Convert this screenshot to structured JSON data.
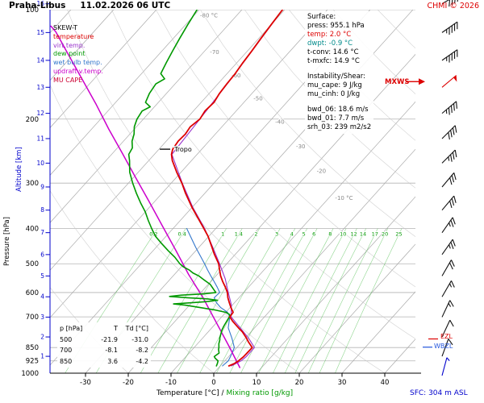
{
  "header": {
    "station": "Praha-Libus",
    "datetime": "11.02.2026 06 UTC",
    "copyright": "CHMI © 2026",
    "copyright_color": "#dd0000"
  },
  "legend": {
    "title": "SKEW-T",
    "title_color": "#000000",
    "items": [
      {
        "label": "temperature",
        "color": "#dd0000"
      },
      {
        "label": "virt.temp.",
        "color": "#9933cc"
      },
      {
        "label": "dew point",
        "color": "#009900"
      },
      {
        "label": "wet bulb temp.",
        "color": "#3377cc"
      },
      {
        "label": "updraft v.temp.",
        "color": "#cc00cc"
      },
      {
        "label": "MU CAPE",
        "color": "#cc0033"
      }
    ]
  },
  "info": {
    "surface_title": "Surface:",
    "surface": [
      {
        "text": "press: 955.1 hPa",
        "color": "#000000"
      },
      {
        "text": "temp: 2.0 °C",
        "color": "#dd0000"
      },
      {
        "text": "dwpt: -0.9 °C",
        "color": "#008b8b"
      },
      {
        "text": "t-conv: 14.6 °C",
        "color": "#000000"
      },
      {
        "text": "t-mxfc: 14.9 °C",
        "color": "#000000"
      }
    ],
    "shear_title": "Instability/Shear:",
    "shear_a": [
      {
        "text": "mu_cape: 9 J/kg"
      },
      {
        "text": "mu_cinh: 0 J/kg"
      }
    ],
    "shear_b": [
      {
        "text": "bwd_06: 18.6 m/s"
      },
      {
        "text": "bwd_01: 7.7 m/s"
      },
      {
        "text": "srh_03: 239 m2/s2"
      }
    ]
  },
  "table": {
    "headers": [
      "p [hPa]",
      "T",
      "Td [°C]"
    ],
    "rows": [
      [
        "500",
        "-21.9",
        "-31.0"
      ],
      [
        "700",
        "-8.1",
        "-8.2"
      ],
      [
        "850",
        "3.6",
        "-4.2"
      ]
    ]
  },
  "footer": {
    "x_label": "Temperature [°C]",
    "x_label_sep": " / ",
    "mixing_label": "Mixing ratio [g/kg]",
    "mixing_label_color": "#009900",
    "sfc_label": "SFC: 304 m ASL",
    "sfc_color": "#0000cc"
  },
  "chart_data": {
    "type": "line",
    "subtype": "skewt-sounding",
    "pressure_axis": {
      "label": "Pressure [hPa]",
      "scale": "log",
      "range": [
        100,
        1000
      ],
      "ticks": [
        100,
        200,
        300,
        400,
        500,
        600,
        700,
        850,
        925,
        1000
      ]
    },
    "altitude_axis": {
      "label": "Altitude [km]",
      "color": "#0000cc",
      "ticks": [
        1,
        2,
        3,
        4,
        5,
        6,
        7,
        8,
        9,
        10,
        11,
        12,
        13,
        14,
        15,
        16
      ]
    },
    "temperature_axis": {
      "label": "Temperature [°C]",
      "skew_deg": 45,
      "ticks": [
        -30,
        -20,
        -10,
        0,
        10,
        20,
        30,
        40
      ]
    },
    "isotherm_labels": [
      {
        "t": -80,
        "p": 104,
        "text": "-80 °C"
      },
      {
        "t": -70,
        "p": 131,
        "text": "-70"
      },
      {
        "t": -60,
        "p": 152,
        "text": "-60"
      },
      {
        "t": -50,
        "p": 176,
        "text": "-50"
      },
      {
        "t": -40,
        "p": 204,
        "text": "-40"
      },
      {
        "t": -30,
        "p": 238,
        "text": "-30"
      },
      {
        "t": -20,
        "p": 278,
        "text": "-20"
      },
      {
        "t": -10,
        "p": 330,
        "text": "-10 °C"
      }
    ],
    "mixing_ratio": {
      "label": "Mixing ratio [g/kg]",
      "color": "#009900",
      "values": [
        0.2,
        0.4,
        1,
        1.4,
        2,
        3,
        4,
        5,
        6,
        8,
        10,
        12,
        14,
        17,
        20,
        25
      ]
    },
    "series": [
      {
        "name": "wet_bulb",
        "color": "#3377cc",
        "width": 1.1,
        "points": [
          [
            955,
            0.5
          ],
          [
            925,
            0.8
          ],
          [
            900,
            0.4
          ],
          [
            850,
            -0.6
          ],
          [
            800,
            -3.2
          ],
          [
            750,
            -6.2
          ],
          [
            700,
            -8.1
          ],
          [
            680,
            -9.6
          ],
          [
            660,
            -12.2
          ],
          [
            640,
            -14.2
          ],
          [
            620,
            -15.8
          ],
          [
            600,
            -15.6
          ],
          [
            580,
            -17.3
          ],
          [
            560,
            -19.2
          ],
          [
            540,
            -21.2
          ],
          [
            520,
            -23.2
          ],
          [
            500,
            -25.2
          ],
          [
            450,
            -30.8
          ],
          [
            400,
            -36.8
          ]
        ]
      },
      {
        "name": "virt_temp",
        "color": "#9933cc",
        "width": 1.1,
        "points": [
          [
            955,
            2.6
          ],
          [
            925,
            3.8
          ],
          [
            900,
            4.1
          ],
          [
            850,
            4.1
          ],
          [
            800,
            0.7
          ],
          [
            750,
            -3.4
          ],
          [
            700,
            -7.8
          ],
          [
            650,
            -10.2
          ],
          [
            600,
            -13.6
          ],
          [
            550,
            -17.2
          ],
          [
            500,
            -21.7
          ],
          [
            450,
            -26.8
          ],
          [
            400,
            -32.6
          ],
          [
            350,
            -39.8
          ],
          [
            300,
            -47.4
          ],
          [
            250,
            -55.9
          ],
          [
            200,
            -56.8
          ],
          [
            150,
            -58.1
          ],
          [
            100,
            -60.5
          ]
        ]
      },
      {
        "name": "updraft_virt_temp",
        "color": "#cc00cc",
        "width": 1.5,
        "points": [
          [
            965,
            4.9
          ],
          [
            845,
            -2.0
          ],
          [
            724,
            -10.2
          ],
          [
            620,
            -18.4
          ],
          [
            535,
            -26.7
          ],
          [
            458,
            -34.9
          ],
          [
            393,
            -43.1
          ],
          [
            337,
            -51.3
          ],
          [
            289,
            -59.6
          ],
          [
            248,
            -67.8
          ],
          [
            213,
            -76.0
          ],
          [
            182,
            -84.2
          ],
          [
            156,
            -92.5
          ],
          [
            134,
            -100.7
          ],
          [
            115,
            -108.9
          ],
          [
            111,
            -111.2
          ]
        ]
      },
      {
        "name": "dew_point",
        "color": "#009900",
        "width": 1.6,
        "points": [
          [
            955,
            -0.9
          ],
          [
            940,
            -1.2
          ],
          [
            925,
            -1.6
          ],
          [
            910,
            -2.8
          ],
          [
            900,
            -3.4
          ],
          [
            880,
            -3.0
          ],
          [
            860,
            -3.9
          ],
          [
            850,
            -4.2
          ],
          [
            830,
            -5.0
          ],
          [
            810,
            -5.6
          ],
          [
            800,
            -6.0
          ],
          [
            780,
            -6.6
          ],
          [
            760,
            -7.2
          ],
          [
            740,
            -7.6
          ],
          [
            720,
            -7.9
          ],
          [
            700,
            -8.2
          ],
          [
            690,
            -8.6
          ],
          [
            680,
            -10.0
          ],
          [
            670,
            -13.0
          ],
          [
            660,
            -17.0
          ],
          [
            650,
            -21.0
          ],
          [
            645,
            -24.0
          ],
          [
            640,
            -20.0
          ],
          [
            635,
            -16.5
          ],
          [
            630,
            -14.5
          ],
          [
            625,
            -17.0
          ],
          [
            620,
            -22.0
          ],
          [
            615,
            -26.5
          ],
          [
            610,
            -24.0
          ],
          [
            605,
            -19.0
          ],
          [
            600,
            -16.5
          ],
          [
            590,
            -17.5
          ],
          [
            580,
            -18.5
          ],
          [
            570,
            -19.5
          ],
          [
            560,
            -21.0
          ],
          [
            550,
            -22.5
          ],
          [
            540,
            -24.0
          ],
          [
            530,
            -26.0
          ],
          [
            520,
            -27.5
          ],
          [
            510,
            -29.5
          ],
          [
            500,
            -31.0
          ],
          [
            480,
            -33.5
          ],
          [
            460,
            -36.5
          ],
          [
            440,
            -39.5
          ],
          [
            420,
            -42.5
          ],
          [
            400,
            -45.0
          ],
          [
            380,
            -47.5
          ],
          [
            360,
            -50.0
          ],
          [
            340,
            -53.0
          ],
          [
            320,
            -56.0
          ],
          [
            300,
            -59.0
          ],
          [
            280,
            -62.0
          ],
          [
            260,
            -64.5
          ],
          [
            250,
            -66.0
          ],
          [
            240,
            -66.5
          ],
          [
            230,
            -68.0
          ],
          [
            220,
            -69.0
          ],
          [
            210,
            -70.5
          ],
          [
            200,
            -71.5
          ],
          [
            190,
            -72.0
          ],
          [
            185,
            -71.0
          ],
          [
            180,
            -73.0
          ],
          [
            170,
            -74.0
          ],
          [
            160,
            -74.5
          ],
          [
            155,
            -73.5
          ],
          [
            150,
            -75.5
          ],
          [
            140,
            -76.5
          ],
          [
            130,
            -77.5
          ],
          [
            120,
            -78.5
          ],
          [
            110,
            -79.5
          ],
          [
            100,
            -80.5
          ]
        ]
      },
      {
        "name": "temperature",
        "color": "#dd0000",
        "width": 1.8,
        "points": [
          [
            955,
            2.0
          ],
          [
            940,
            2.8
          ],
          [
            925,
            3.2
          ],
          [
            900,
            3.5
          ],
          [
            850,
            3.6
          ],
          [
            820,
            1.5
          ],
          [
            800,
            0.2
          ],
          [
            770,
            -2.0
          ],
          [
            750,
            -3.8
          ],
          [
            720,
            -6.5
          ],
          [
            700,
            -8.1
          ],
          [
            680,
            -8.3
          ],
          [
            660,
            -9.8
          ],
          [
            640,
            -11.2
          ],
          [
            620,
            -12.6
          ],
          [
            600,
            -13.8
          ],
          [
            580,
            -15.4
          ],
          [
            560,
            -17.2
          ],
          [
            540,
            -18.9
          ],
          [
            520,
            -20.4
          ],
          [
            500,
            -21.9
          ],
          [
            470,
            -25.0
          ],
          [
            450,
            -27.0
          ],
          [
            420,
            -30.2
          ],
          [
            400,
            -32.8
          ],
          [
            370,
            -37.0
          ],
          [
            350,
            -40.0
          ],
          [
            320,
            -44.5
          ],
          [
            300,
            -47.5
          ],
          [
            280,
            -51.0
          ],
          [
            260,
            -54.5
          ],
          [
            250,
            -56.0
          ],
          [
            242,
            -56.8
          ],
          [
            230,
            -57.2
          ],
          [
            220,
            -57.0
          ],
          [
            210,
            -57.4
          ],
          [
            200,
            -56.8
          ],
          [
            190,
            -57.3
          ],
          [
            180,
            -57.0
          ],
          [
            170,
            -57.6
          ],
          [
            160,
            -57.9
          ],
          [
            150,
            -58.1
          ],
          [
            140,
            -58.6
          ],
          [
            130,
            -59.0
          ],
          [
            120,
            -59.5
          ],
          [
            110,
            -60.0
          ],
          [
            100,
            -60.5
          ]
        ]
      }
    ],
    "markers": {
      "tropo": {
        "label": "Tropo",
        "pressure": 242,
        "temp": -56.8
      },
      "mxws": {
        "label": "MXWS",
        "color": "#dd0000",
        "alt_km": 13
      },
      "ezl": {
        "label": "EZL",
        "color": "#dd0000",
        "pressure": 805
      },
      "wbzl": {
        "label": "WBZL",
        "color": "#2255dd",
        "pressure": 848
      }
    },
    "wind": {
      "units": "m/s",
      "levels": [
        {
          "alt_km": 16,
          "speed": 20,
          "dir": 60
        },
        {
          "alt_km": 15,
          "speed": 22,
          "dir": 55
        },
        {
          "alt_km": 14,
          "speed": 23,
          "dir": 55
        },
        {
          "alt_km": 13,
          "speed": 26,
          "dir": 50,
          "color": "#dd0000"
        },
        {
          "alt_km": 12,
          "speed": 22,
          "dir": 50
        },
        {
          "alt_km": 11,
          "speed": 20,
          "dir": 45
        },
        {
          "alt_km": 10,
          "speed": 18,
          "dir": 45
        },
        {
          "alt_km": 9,
          "speed": 16,
          "dir": 40
        },
        {
          "alt_km": 8,
          "speed": 15,
          "dir": 40
        },
        {
          "alt_km": 7,
          "speed": 14,
          "dir": 35
        },
        {
          "alt_km": 6,
          "speed": 12,
          "dir": 35
        },
        {
          "alt_km": 5,
          "speed": 10,
          "dir": 30
        },
        {
          "alt_km": 4,
          "speed": 9,
          "dir": 30
        },
        {
          "alt_km": 3,
          "speed": 8,
          "dir": 25
        },
        {
          "alt_km": 2,
          "speed": 6,
          "dir": 25
        },
        {
          "alt_km": 1,
          "speed": 5,
          "dir": 20
        },
        {
          "alt_km": 0,
          "speed": 4,
          "dir": 15,
          "color": "#0000cc"
        }
      ]
    }
  }
}
